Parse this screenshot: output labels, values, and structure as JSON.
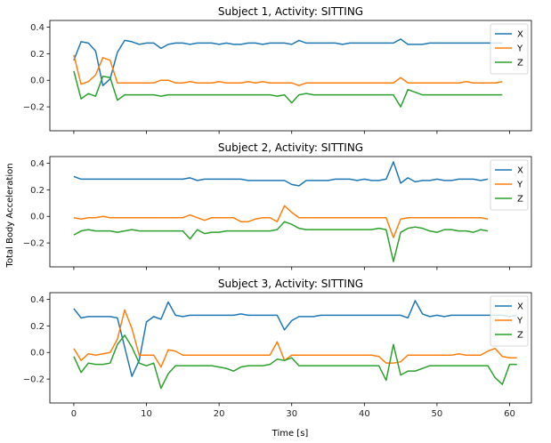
{
  "ylabel": "Total Body Acceleration",
  "xlabel": "Time [s]",
  "colors": {
    "X": "#1f77b4",
    "Y": "#ff7f0e",
    "Z": "#2ca02c"
  },
  "chart_data": [
    {
      "type": "line",
      "title": "Subject 1, Activity: SITTING",
      "xlim": [
        -3.3,
        63.0
      ],
      "ylim": [
        -0.38,
        0.45
      ],
      "x_ticks": [
        0,
        10,
        20,
        30,
        40,
        50,
        60
      ],
      "y_ticks": [
        -0.2,
        0.0,
        0.2,
        0.4
      ],
      "y_tick_labels": [
        "−0.2",
        "0.0",
        "0.2",
        "0.4"
      ],
      "x_tick_labels_visible": false,
      "legend": "top-right",
      "series": [
        {
          "name": "X",
          "values": [
            0.15,
            0.29,
            0.28,
            0.22,
            -0.04,
            0.01,
            0.21,
            0.3,
            0.29,
            0.27,
            0.28,
            0.28,
            0.24,
            0.27,
            0.28,
            0.28,
            0.27,
            0.28,
            0.28,
            0.28,
            0.27,
            0.28,
            0.27,
            0.27,
            0.28,
            0.28,
            0.27,
            0.28,
            0.28,
            0.28,
            0.27,
            0.3,
            0.28,
            0.28,
            0.28,
            0.28,
            0.28,
            0.27,
            0.28,
            0.28,
            0.28,
            0.28,
            0.28,
            0.28,
            0.28,
            0.31,
            0.27,
            0.27,
            0.27,
            0.28,
            0.28,
            0.28,
            0.28,
            0.28,
            0.28,
            0.28,
            0.28,
            0.28,
            0.28,
            0.28
          ]
        },
        {
          "name": "Y",
          "values": [
            0.19,
            -0.03,
            -0.01,
            0.04,
            0.17,
            0.15,
            -0.02,
            -0.02,
            -0.02,
            -0.02,
            -0.02,
            -0.02,
            0.0,
            0.0,
            -0.02,
            -0.02,
            -0.01,
            -0.02,
            -0.02,
            -0.02,
            -0.01,
            -0.02,
            -0.02,
            -0.02,
            -0.01,
            -0.02,
            -0.01,
            -0.02,
            -0.02,
            -0.02,
            -0.02,
            -0.04,
            -0.02,
            -0.02,
            -0.02,
            -0.02,
            -0.02,
            -0.02,
            -0.02,
            -0.02,
            -0.02,
            -0.02,
            -0.02,
            -0.02,
            -0.02,
            0.02,
            -0.02,
            -0.02,
            -0.02,
            -0.02,
            -0.02,
            -0.02,
            -0.02,
            -0.02,
            -0.01,
            -0.02,
            -0.02,
            -0.02,
            -0.02,
            -0.01
          ]
        },
        {
          "name": "Z",
          "values": [
            0.07,
            -0.14,
            -0.1,
            -0.12,
            0.03,
            0.02,
            -0.15,
            -0.11,
            -0.11,
            -0.11,
            -0.11,
            -0.11,
            -0.12,
            -0.11,
            -0.11,
            -0.11,
            -0.11,
            -0.11,
            -0.11,
            -0.11,
            -0.11,
            -0.11,
            -0.11,
            -0.11,
            -0.11,
            -0.11,
            -0.11,
            -0.11,
            -0.12,
            -0.11,
            -0.17,
            -0.11,
            -0.1,
            -0.11,
            -0.11,
            -0.11,
            -0.11,
            -0.11,
            -0.11,
            -0.11,
            -0.11,
            -0.11,
            -0.11,
            -0.11,
            -0.11,
            -0.2,
            -0.07,
            -0.09,
            -0.11,
            -0.11,
            -0.11,
            -0.11,
            -0.11,
            -0.11,
            -0.11,
            -0.11,
            -0.11,
            -0.11,
            -0.11,
            -0.11
          ]
        }
      ]
    },
    {
      "type": "line",
      "title": "Subject 2, Activity: SITTING",
      "xlim": [
        -3.3,
        63.0
      ],
      "ylim": [
        -0.38,
        0.45
      ],
      "x_ticks": [
        0,
        10,
        20,
        30,
        40,
        50,
        60
      ],
      "y_ticks": [
        -0.2,
        0.0,
        0.2,
        0.4
      ],
      "y_tick_labels": [
        "−0.2",
        "0.0",
        "0.2",
        "0.4"
      ],
      "x_tick_labels_visible": false,
      "legend": "top-right",
      "series": [
        {
          "name": "X",
          "values": [
            0.3,
            0.28,
            0.28,
            0.28,
            0.28,
            0.28,
            0.28,
            0.28,
            0.28,
            0.28,
            0.28,
            0.28,
            0.28,
            0.28,
            0.28,
            0.28,
            0.29,
            0.27,
            0.28,
            0.28,
            0.28,
            0.28,
            0.28,
            0.28,
            0.27,
            0.27,
            0.27,
            0.27,
            0.27,
            0.27,
            0.24,
            0.23,
            0.27,
            0.27,
            0.27,
            0.27,
            0.28,
            0.28,
            0.28,
            0.27,
            0.28,
            0.27,
            0.27,
            0.28,
            0.41,
            0.25,
            0.29,
            0.26,
            0.27,
            0.27,
            0.28,
            0.27,
            0.27,
            0.28,
            0.28,
            0.28,
            0.27,
            0.28
          ]
        },
        {
          "name": "Y",
          "values": [
            -0.01,
            -0.02,
            -0.01,
            -0.01,
            0.0,
            -0.01,
            -0.01,
            -0.01,
            -0.01,
            -0.01,
            -0.01,
            -0.01,
            -0.01,
            -0.01,
            -0.01,
            -0.01,
            0.01,
            -0.01,
            -0.03,
            -0.01,
            -0.01,
            -0.01,
            -0.01,
            -0.04,
            -0.04,
            -0.02,
            -0.01,
            -0.01,
            -0.04,
            0.08,
            0.03,
            -0.01,
            -0.01,
            -0.01,
            -0.01,
            -0.01,
            -0.01,
            -0.01,
            -0.01,
            -0.01,
            -0.01,
            -0.01,
            -0.01,
            -0.01,
            -0.16,
            -0.02,
            -0.01,
            -0.01,
            -0.01,
            -0.01,
            -0.01,
            -0.01,
            -0.01,
            -0.01,
            -0.01,
            -0.01,
            -0.01,
            -0.02
          ]
        },
        {
          "name": "Z",
          "values": [
            -0.14,
            -0.11,
            -0.1,
            -0.11,
            -0.11,
            -0.11,
            -0.12,
            -0.11,
            -0.1,
            -0.11,
            -0.11,
            -0.11,
            -0.11,
            -0.11,
            -0.11,
            -0.11,
            -0.17,
            -0.1,
            -0.13,
            -0.12,
            -0.12,
            -0.11,
            -0.11,
            -0.11,
            -0.11,
            -0.11,
            -0.11,
            -0.11,
            -0.1,
            -0.04,
            -0.06,
            -0.09,
            -0.1,
            -0.1,
            -0.1,
            -0.1,
            -0.1,
            -0.1,
            -0.1,
            -0.1,
            -0.1,
            -0.1,
            -0.09,
            -0.1,
            -0.34,
            -0.12,
            -0.09,
            -0.08,
            -0.09,
            -0.11,
            -0.12,
            -0.1,
            -0.1,
            -0.11,
            -0.11,
            -0.12,
            -0.1,
            -0.11
          ]
        }
      ]
    },
    {
      "type": "line",
      "title": "Subject 3, Activity: SITTING",
      "xlim": [
        -3.3,
        63.0
      ],
      "ylim": [
        -0.38,
        0.45
      ],
      "x_ticks": [
        0,
        10,
        20,
        30,
        40,
        50,
        60
      ],
      "y_ticks": [
        -0.2,
        0.0,
        0.2,
        0.4
      ],
      "y_tick_labels": [
        "−0.2",
        "0.0",
        "0.2",
        "0.4"
      ],
      "x_tick_labels_visible": true,
      "legend": "top-right",
      "series": [
        {
          "name": "X",
          "values": [
            0.33,
            0.26,
            0.27,
            0.27,
            0.27,
            0.27,
            0.26,
            0.04,
            -0.18,
            -0.06,
            0.23,
            0.27,
            0.25,
            0.38,
            0.28,
            0.27,
            0.28,
            0.28,
            0.28,
            0.28,
            0.28,
            0.28,
            0.28,
            0.29,
            0.28,
            0.28,
            0.28,
            0.28,
            0.28,
            0.17,
            0.24,
            0.27,
            0.27,
            0.27,
            0.28,
            0.28,
            0.28,
            0.28,
            0.28,
            0.28,
            0.28,
            0.28,
            0.28,
            0.28,
            0.28,
            0.28,
            0.26,
            0.39,
            0.29,
            0.27,
            0.28,
            0.27,
            0.28,
            0.28,
            0.28,
            0.28,
            0.28,
            0.28,
            0.28,
            0.28,
            0.27,
            0.28
          ]
        },
        {
          "name": "Y",
          "values": [
            0.03,
            -0.06,
            -0.01,
            -0.02,
            -0.01,
            0.0,
            0.1,
            0.32,
            0.18,
            -0.02,
            -0.02,
            -0.02,
            -0.11,
            0.02,
            0.01,
            -0.02,
            -0.02,
            -0.02,
            -0.02,
            -0.02,
            -0.02,
            -0.02,
            -0.02,
            -0.02,
            -0.02,
            -0.02,
            -0.02,
            -0.02,
            0.08,
            -0.06,
            -0.02,
            -0.02,
            -0.02,
            -0.02,
            -0.02,
            -0.02,
            -0.02,
            -0.02,
            -0.02,
            -0.02,
            -0.02,
            -0.02,
            -0.03,
            -0.08,
            -0.08,
            -0.07,
            -0.02,
            -0.02,
            -0.02,
            -0.02,
            -0.02,
            -0.02,
            -0.02,
            -0.01,
            -0.02,
            -0.02,
            -0.02,
            0.01,
            0.03,
            -0.03,
            -0.04,
            -0.04
          ]
        },
        {
          "name": "Z",
          "values": [
            -0.03,
            -0.15,
            -0.08,
            -0.09,
            -0.09,
            -0.08,
            0.06,
            0.13,
            0.04,
            -0.08,
            -0.1,
            -0.08,
            -0.27,
            -0.16,
            -0.1,
            -0.1,
            -0.1,
            -0.1,
            -0.1,
            -0.1,
            -0.11,
            -0.12,
            -0.14,
            -0.11,
            -0.1,
            -0.1,
            -0.1,
            -0.09,
            -0.05,
            -0.06,
            -0.04,
            -0.1,
            -0.1,
            -0.1,
            -0.1,
            -0.1,
            -0.1,
            -0.1,
            -0.1,
            -0.1,
            -0.1,
            -0.1,
            -0.1,
            -0.21,
            0.06,
            -0.17,
            -0.14,
            -0.14,
            -0.12,
            -0.1,
            -0.1,
            -0.1,
            -0.1,
            -0.1,
            -0.1,
            -0.1,
            -0.1,
            -0.1,
            -0.19,
            -0.24,
            -0.09,
            -0.09
          ]
        }
      ]
    }
  ]
}
